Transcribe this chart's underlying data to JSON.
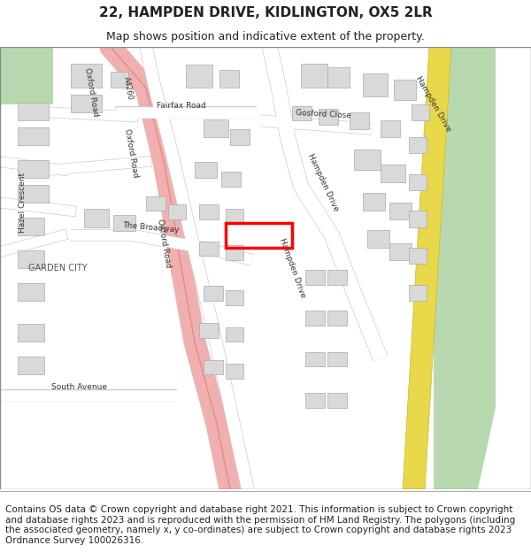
{
  "title": "22, HAMPDEN DRIVE, KIDLINGTON, OX5 2LR",
  "subtitle": "Map shows position and indicative extent of the property.",
  "footer": "Contains OS data © Crown copyright and database right 2021. This information is subject to Crown copyright and database rights 2023 and is reproduced with the permission of HM Land Registry. The polygons (including the associated geometry, namely x, y co-ordinates) are subject to Crown copyright and database rights 2023 Ordnance Survey 100026316.",
  "bg_color": "#f5f0eb",
  "map_bg": "#f5f0eb",
  "road_color": "#ffffff",
  "road_border": "#cccccc",
  "building_color": "#d9d9d9",
  "building_border": "#aaaaaa",
  "green_color": "#c8e6c4",
  "pink_road_color": "#f0a0a0",
  "yellow_road_color": "#f5e66e",
  "highlight_color": "#ff0000",
  "title_fontsize": 11,
  "subtitle_fontsize": 9,
  "footer_fontsize": 7.5
}
